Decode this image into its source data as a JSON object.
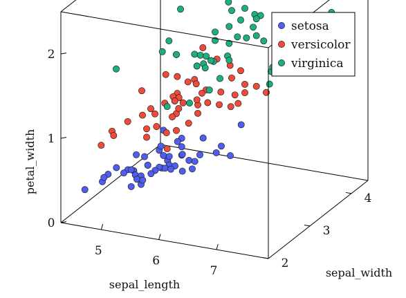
{
  "chart_data": {
    "type": "scatter",
    "projection": "3d",
    "title": "",
    "xlabel": "sepal_length",
    "ylabel": "sepal_width",
    "zlabel": "petal_width",
    "xlim": [
      4.3,
      7.9
    ],
    "ylim": [
      2.0,
      4.4
    ],
    "zlim": [
      0.0,
      2.5
    ],
    "xticks": [
      "5",
      "6",
      "7"
    ],
    "yticks": [
      "2",
      "3",
      "4"
    ],
    "zticks": [
      "0",
      "1",
      "2"
    ],
    "grid": false,
    "legend_position": "top-right",
    "series": [
      {
        "name": "setosa",
        "color": "#4f5ef0",
        "points": [
          [
            4.3,
            3.0,
            0.1
          ],
          [
            4.4,
            2.9,
            0.2
          ],
          [
            4.4,
            3.0,
            0.2
          ],
          [
            4.4,
            3.2,
            0.2
          ],
          [
            4.5,
            2.3,
            0.3
          ],
          [
            4.6,
            3.1,
            0.2
          ],
          [
            4.6,
            3.4,
            0.3
          ],
          [
            4.6,
            3.6,
            0.2
          ],
          [
            4.6,
            3.2,
            0.2
          ],
          [
            4.7,
            3.2,
            0.2
          ],
          [
            4.7,
            3.2,
            0.2
          ],
          [
            4.8,
            3.4,
            0.2
          ],
          [
            4.8,
            3.0,
            0.1
          ],
          [
            4.8,
            3.4,
            0.2
          ],
          [
            4.8,
            3.1,
            0.2
          ],
          [
            4.8,
            3.0,
            0.3
          ],
          [
            4.9,
            3.0,
            0.2
          ],
          [
            4.9,
            3.1,
            0.1
          ],
          [
            4.9,
            3.6,
            0.1
          ],
          [
            4.9,
            3.1,
            0.2
          ],
          [
            5.0,
            3.6,
            0.2
          ],
          [
            5.0,
            3.4,
            0.2
          ],
          [
            5.0,
            3.0,
            0.2
          ],
          [
            5.0,
            3.4,
            0.4
          ],
          [
            5.0,
            3.2,
            0.2
          ],
          [
            5.0,
            3.5,
            0.3
          ],
          [
            5.0,
            3.5,
            0.6
          ],
          [
            5.0,
            3.3,
            0.2
          ],
          [
            5.1,
            3.5,
            0.2
          ],
          [
            5.1,
            3.5,
            0.3
          ],
          [
            5.1,
            3.8,
            0.3
          ],
          [
            5.1,
            3.7,
            0.4
          ],
          [
            5.1,
            3.3,
            0.5
          ],
          [
            5.1,
            3.4,
            0.2
          ],
          [
            5.1,
            3.8,
            0.4
          ],
          [
            5.1,
            3.8,
            0.2
          ],
          [
            5.2,
            3.5,
            0.2
          ],
          [
            5.2,
            3.4,
            0.2
          ],
          [
            5.2,
            4.1,
            0.1
          ],
          [
            5.3,
            3.7,
            0.2
          ],
          [
            5.4,
            3.9,
            0.4
          ],
          [
            5.4,
            3.7,
            0.2
          ],
          [
            5.4,
            3.9,
            0.4
          ],
          [
            5.4,
            3.4,
            0.2
          ],
          [
            5.4,
            3.4,
            0.4
          ],
          [
            5.5,
            4.2,
            0.2
          ],
          [
            5.5,
            3.5,
            0.2
          ],
          [
            5.7,
            4.4,
            0.4
          ],
          [
            5.7,
            3.8,
            0.3
          ],
          [
            5.8,
            4.0,
            0.2
          ]
        ]
      },
      {
        "name": "versicolor",
        "color": "#f04a3a",
        "points": [
          [
            4.9,
            2.4,
            1.0
          ],
          [
            5.0,
            2.0,
            1.0
          ],
          [
            5.0,
            2.3,
            1.0
          ],
          [
            5.1,
            2.5,
            1.1
          ],
          [
            5.2,
            2.7,
            1.4
          ],
          [
            5.4,
            3.0,
            1.5
          ],
          [
            5.5,
            2.3,
            1.3
          ],
          [
            5.5,
            2.4,
            1.0
          ],
          [
            5.5,
            2.4,
            1.1
          ],
          [
            5.5,
            2.5,
            1.3
          ],
          [
            5.5,
            2.6,
            1.2
          ],
          [
            5.6,
            2.9,
            1.3
          ],
          [
            5.6,
            3.0,
            1.5
          ],
          [
            5.6,
            2.5,
            1.1
          ],
          [
            5.6,
            3.0,
            1.3
          ],
          [
            5.6,
            2.7,
            1.3
          ],
          [
            5.7,
            2.8,
            1.3
          ],
          [
            5.7,
            2.6,
            1.0
          ],
          [
            5.7,
            3.0,
            1.2
          ],
          [
            5.7,
            2.9,
            1.3
          ],
          [
            5.7,
            2.8,
            1.3
          ],
          [
            5.8,
            2.7,
            1.0
          ],
          [
            5.8,
            2.7,
            1.2
          ],
          [
            5.8,
            2.6,
            1.2
          ],
          [
            5.9,
            3.0,
            1.5
          ],
          [
            5.9,
            3.2,
            1.8
          ],
          [
            6.0,
            2.2,
            1.0
          ],
          [
            6.0,
            2.9,
            1.5
          ],
          [
            6.0,
            2.7,
            1.6
          ],
          [
            6.0,
            3.4,
            1.6
          ],
          [
            6.1,
            2.9,
            1.4
          ],
          [
            6.1,
            2.8,
            1.3
          ],
          [
            6.1,
            2.8,
            1.2
          ],
          [
            6.1,
            3.0,
            1.4
          ],
          [
            6.2,
            2.2,
            1.5
          ],
          [
            6.2,
            2.9,
            1.3
          ],
          [
            6.3,
            3.3,
            1.6
          ],
          [
            6.3,
            2.5,
            1.5
          ],
          [
            6.3,
            2.3,
            1.3
          ],
          [
            6.4,
            3.2,
            1.5
          ],
          [
            6.4,
            2.9,
            1.3
          ],
          [
            6.5,
            2.8,
            1.5
          ],
          [
            6.6,
            2.9,
            1.3
          ],
          [
            6.6,
            3.0,
            1.4
          ],
          [
            6.7,
            3.1,
            1.4
          ],
          [
            6.7,
            3.0,
            1.7
          ],
          [
            6.7,
            3.1,
            1.5
          ],
          [
            6.8,
            2.8,
            1.4
          ],
          [
            6.9,
            3.1,
            1.5
          ],
          [
            7.0,
            3.2,
            1.4
          ]
        ]
      },
      {
        "name": "virginica",
        "color": "#1bb07e",
        "points": [
          [
            4.9,
            2.5,
            1.7
          ],
          [
            5.6,
            2.8,
            2.0
          ],
          [
            5.7,
            2.5,
            2.0
          ],
          [
            5.8,
            2.7,
            1.9
          ],
          [
            5.8,
            2.8,
            2.4
          ],
          [
            5.8,
            2.7,
            1.9
          ],
          [
            5.9,
            3.0,
            1.8
          ],
          [
            6.0,
            2.2,
            1.5
          ],
          [
            6.0,
            3.0,
            1.8
          ],
          [
            6.1,
            3.0,
            1.8
          ],
          [
            6.1,
            2.6,
            1.4
          ],
          [
            6.2,
            2.8,
            1.8
          ],
          [
            6.2,
            3.4,
            2.3
          ],
          [
            6.3,
            3.3,
            2.5
          ],
          [
            6.3,
            2.9,
            1.8
          ],
          [
            6.3,
            2.7,
            1.8
          ],
          [
            6.3,
            2.8,
            1.5
          ],
          [
            6.3,
            3.4,
            2.4
          ],
          [
            6.3,
            2.5,
            1.9
          ],
          [
            6.3,
            2.5,
            1.9
          ],
          [
            6.4,
            2.7,
            1.9
          ],
          [
            6.4,
            3.2,
            2.3
          ],
          [
            6.4,
            2.8,
            2.1
          ],
          [
            6.4,
            2.8,
            2.2
          ],
          [
            6.4,
            3.1,
            1.8
          ],
          [
            6.5,
            3.0,
            2.2
          ],
          [
            6.5,
            3.2,
            2.0
          ],
          [
            6.5,
            3.0,
            1.8
          ],
          [
            6.5,
            3.0,
            2.0
          ],
          [
            6.7,
            2.5,
            1.8
          ],
          [
            6.7,
            3.3,
            2.1
          ],
          [
            6.7,
            3.1,
            2.4
          ],
          [
            6.7,
            3.3,
            2.5
          ],
          [
            6.7,
            3.0,
            2.3
          ],
          [
            6.8,
            3.0,
            2.1
          ],
          [
            6.8,
            3.2,
            2.3
          ],
          [
            6.9,
            3.1,
            2.1
          ],
          [
            6.9,
            3.2,
            2.3
          ],
          [
            6.9,
            3.1,
            2.3
          ],
          [
            7.1,
            3.0,
            2.1
          ],
          [
            7.2,
            3.6,
            2.5
          ],
          [
            7.2,
            3.2,
            1.8
          ],
          [
            7.2,
            3.0,
            1.6
          ],
          [
            7.3,
            2.9,
            1.8
          ],
          [
            7.4,
            2.8,
            1.9
          ],
          [
            7.6,
            3.0,
            2.1
          ],
          [
            7.7,
            3.8,
            2.2
          ],
          [
            7.7,
            2.6,
            2.3
          ],
          [
            7.7,
            2.8,
            2.0
          ],
          [
            7.9,
            3.8,
            2.0
          ]
        ]
      }
    ]
  }
}
